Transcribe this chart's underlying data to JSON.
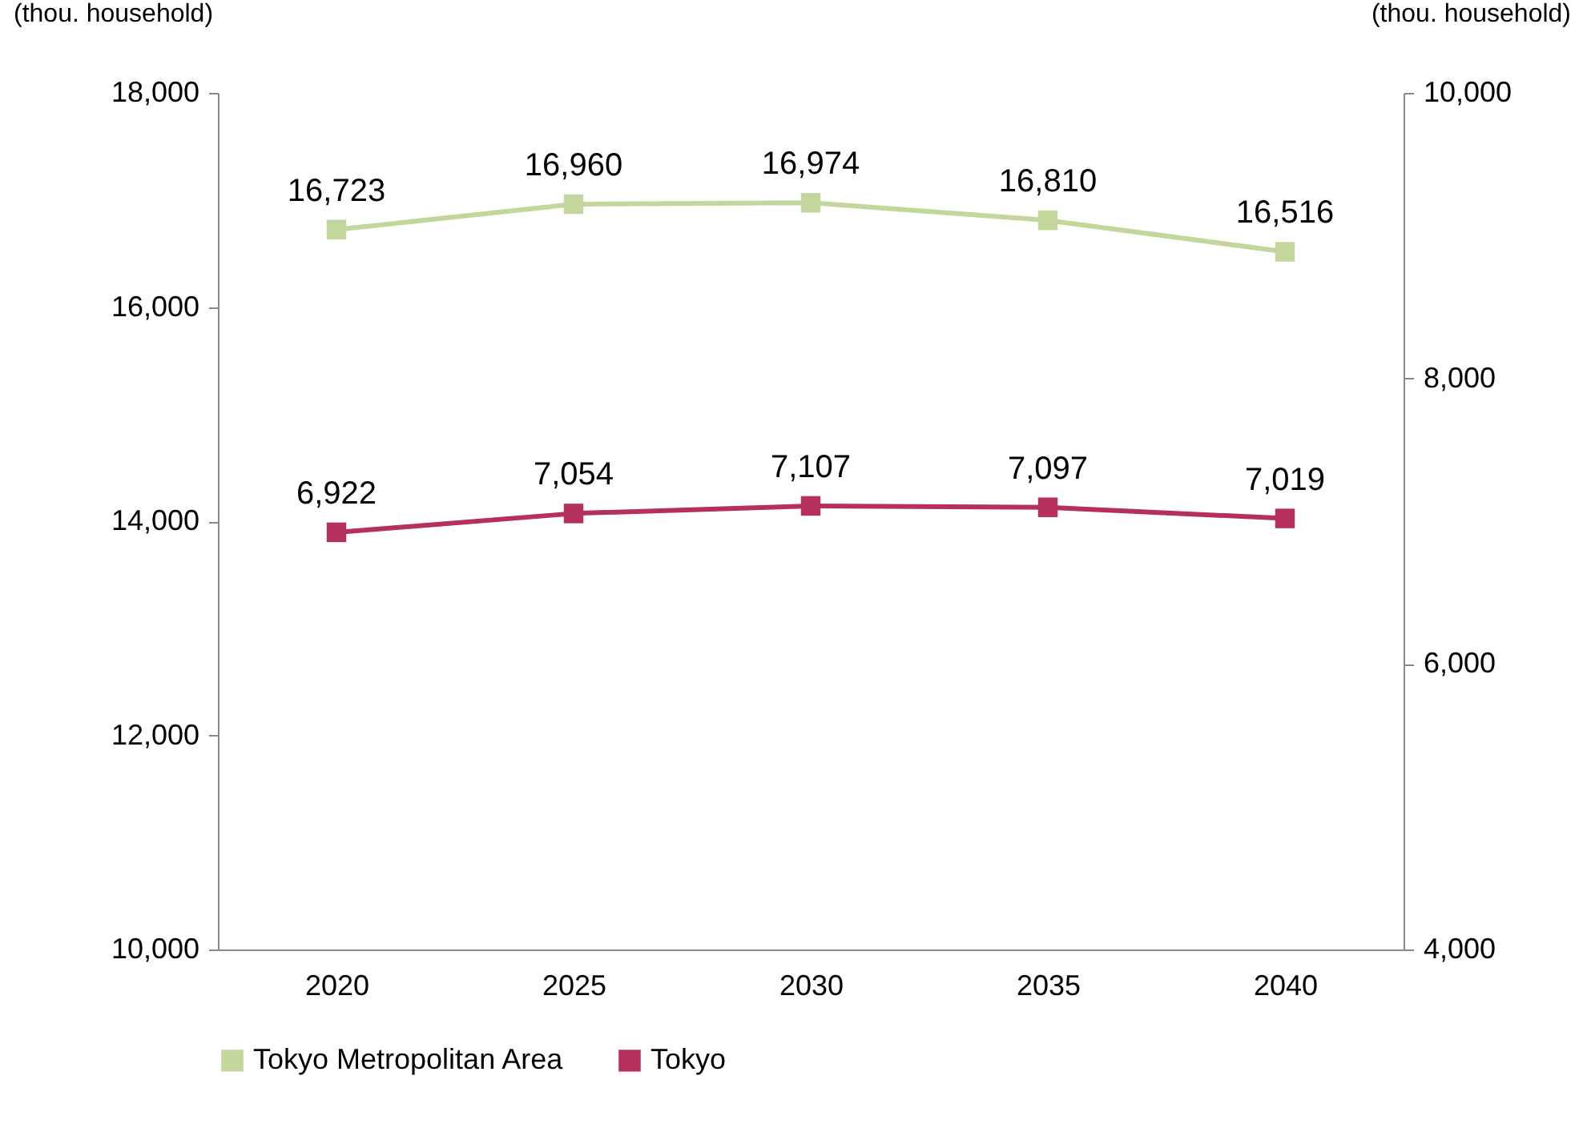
{
  "chart_data": {
    "type": "line",
    "ylabel": "(thou. household)",
    "y2label": "(thou. household)",
    "categories": [
      "2020",
      "2025",
      "2030",
      "2035",
      "2040"
    ],
    "series": [
      {
        "name": "Tokyo Metropolitan Area",
        "color": "#c3d69b",
        "values": [
          16723,
          16960,
          16974,
          16810,
          16516
        ],
        "value_labels": [
          "16,723",
          "16,960",
          "16,974",
          "16,810",
          "16,516"
        ]
      },
      {
        "name": "Tokyo",
        "color": "#b5305c",
        "axis": "y2",
        "values": [
          6922,
          7054,
          7107,
          7097,
          7019
        ],
        "value_labels": [
          "6,922",
          "7,054",
          "7,107",
          "7,097",
          "7,019"
        ]
      }
    ],
    "ylim": [
      10000,
      18000
    ],
    "yticks": [
      {
        "value": 10000,
        "label": "10,000"
      },
      {
        "value": 12000,
        "label": "12,000"
      },
      {
        "value": 14000,
        "label": "14,000"
      },
      {
        "value": 16000,
        "label": "16,000"
      },
      {
        "value": 18000,
        "label": "18,000"
      }
    ],
    "y2lim": [
      4000,
      10000
    ],
    "y2ticks": [
      {
        "value": 4000,
        "label": "4,000"
      },
      {
        "value": 6000,
        "label": "6,000"
      },
      {
        "value": 8000,
        "label": "8,000"
      },
      {
        "value": 10000,
        "label": "10,000"
      }
    ],
    "marker": "square",
    "grid": false,
    "legend": "bottom"
  }
}
